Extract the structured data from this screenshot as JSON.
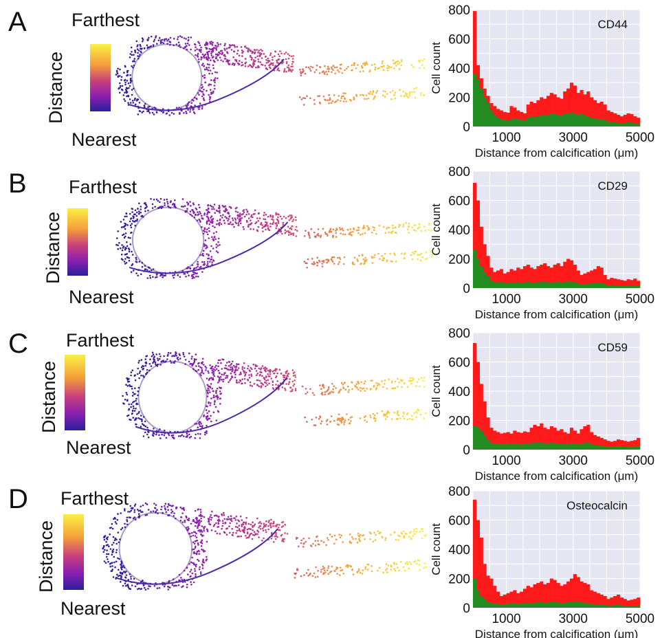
{
  "colorbar": {
    "top_label": "Farthest",
    "bottom_label": "Nearest",
    "axis_label": "Distance",
    "stops": [
      "#f9f044",
      "#f5a03a",
      "#c8407a",
      "#8a1fb0",
      "#2a1f9c"
    ]
  },
  "colors": {
    "red_series": "#ff1a1a",
    "green_series": "#228b22",
    "plot_bg": "#e6e6f2",
    "grid": "#ffffff"
  },
  "chart_data": [
    {
      "panel": "A",
      "type": "bar",
      "annotation": "CD44",
      "ylabel": "Cell count",
      "xlabel": "Distance from calcification (μm)",
      "xlim": [
        0,
        5000
      ],
      "ylim": [
        0,
        800
      ],
      "xticks": [
        1000,
        3000,
        5000
      ],
      "yticks": [
        0,
        200,
        400,
        600,
        800
      ],
      "bin_width": 100,
      "series": [
        {
          "values": [
            790,
            420,
            330,
            260,
            210,
            160,
            140,
            120,
            110,
            100,
            95,
            140,
            130,
            110,
            100,
            90,
            150,
            170,
            160,
            180,
            200,
            190,
            210,
            230,
            220,
            200,
            190,
            240,
            260,
            300,
            280,
            230,
            250,
            220,
            240,
            200,
            180,
            160,
            170,
            150,
            110,
            100,
            90,
            80,
            70,
            80,
            90,
            85,
            70,
            60
          ]
        },
        {
          "values": [
            360,
            320,
            260,
            200,
            160,
            110,
            80,
            60,
            50,
            45,
            40,
            50,
            55,
            50,
            45,
            40,
            60,
            70,
            65,
            70,
            80,
            75,
            80,
            90,
            85,
            80,
            75,
            85,
            90,
            95,
            90,
            80,
            85,
            75,
            70,
            60,
            55,
            50,
            50,
            45,
            35,
            30,
            28,
            25,
            22,
            25,
            28,
            26,
            22,
            20
          ]
        }
      ]
    },
    {
      "panel": "B",
      "type": "bar",
      "annotation": "CD29",
      "ylabel": "Cell count",
      "xlabel": "Distance from calcification (μm)",
      "xlim": [
        0,
        5000
      ],
      "ylim": [
        0,
        800
      ],
      "xticks": [
        1000,
        3000,
        5000
      ],
      "yticks": [
        0,
        200,
        400,
        600,
        800
      ],
      "bin_width": 100,
      "series": [
        {
          "values": [
            720,
            600,
            420,
            300,
            220,
            140,
            110,
            120,
            130,
            100,
            110,
            130,
            120,
            140,
            130,
            150,
            160,
            140,
            130,
            150,
            160,
            170,
            150,
            140,
            160,
            170,
            150,
            180,
            200,
            190,
            160,
            120,
            90,
            100,
            110,
            120,
            130,
            150,
            140,
            90,
            60,
            70,
            65,
            60,
            55,
            50,
            60,
            55,
            65,
            50
          ]
        },
        {
          "values": [
            260,
            200,
            150,
            110,
            80,
            50,
            40,
            40,
            45,
            35,
            35,
            40,
            38,
            40,
            35,
            40,
            42,
            38,
            36,
            40,
            42,
            45,
            40,
            38,
            40,
            42,
            38,
            45,
            48,
            45,
            40,
            32,
            25,
            28,
            30,
            32,
            33,
            36,
            34,
            25,
            18,
            20,
            18,
            16,
            15,
            14,
            16,
            15,
            17,
            14
          ]
        }
      ]
    },
    {
      "panel": "C",
      "type": "bar",
      "annotation": "CD59",
      "ylabel": "Cell count",
      "xlabel": "Distance from calcification (μm)",
      "xlim": [
        0,
        5000
      ],
      "ylim": [
        0,
        800
      ],
      "xticks": [
        1000,
        3000,
        5000
      ],
      "yticks": [
        0,
        200,
        400,
        600,
        800
      ],
      "bin_width": 100,
      "series": [
        {
          "values": [
            730,
            600,
            450,
            330,
            220,
            150,
            130,
            120,
            110,
            115,
            120,
            110,
            130,
            120,
            115,
            125,
            120,
            150,
            170,
            160,
            180,
            150,
            140,
            160,
            150,
            130,
            140,
            120,
            110,
            150,
            130,
            110,
            140,
            160,
            170,
            120,
            100,
            90,
            80,
            70,
            60,
            55,
            60,
            70,
            65,
            60,
            55,
            60,
            65,
            80
          ]
        },
        {
          "values": [
            160,
            150,
            130,
            100,
            70,
            45,
            40,
            38,
            36,
            38,
            40,
            36,
            42,
            38,
            36,
            40,
            38,
            45,
            48,
            46,
            50,
            44,
            42,
            46,
            44,
            40,
            42,
            38,
            36,
            44,
            40,
            36,
            42,
            46,
            48,
            36,
            30,
            28,
            26,
            24,
            20,
            18,
            20,
            22,
            21,
            20,
            18,
            20,
            22,
            24
          ]
        }
      ]
    },
    {
      "panel": "D",
      "type": "bar",
      "annotation": "Osteocalcin",
      "ylabel": "Cell count",
      "xlabel": "Distance from calcification (μm)",
      "xlim": [
        0,
        5000
      ],
      "ylim": [
        0,
        800
      ],
      "xticks": [
        1000,
        3000,
        5000
      ],
      "yticks": [
        0,
        200,
        400,
        600,
        800
      ],
      "bin_width": 100,
      "series": [
        {
          "values": [
            740,
            600,
            480,
            300,
            220,
            200,
            150,
            110,
            80,
            90,
            100,
            110,
            120,
            100,
            110,
            130,
            150,
            140,
            160,
            170,
            180,
            160,
            170,
            200,
            190,
            170,
            150,
            160,
            180,
            200,
            230,
            210,
            180,
            170,
            160,
            120,
            110,
            100,
            90,
            80,
            60,
            70,
            80,
            90,
            70,
            60,
            50,
            55,
            60,
            70
          ]
        },
        {
          "values": [
            200,
            120,
            80,
            60,
            40,
            30,
            28,
            26,
            24,
            25,
            26,
            28,
            30,
            26,
            28,
            30,
            34,
            32,
            35,
            36,
            38,
            34,
            36,
            40,
            38,
            36,
            32,
            34,
            38,
            40,
            44,
            40,
            36,
            34,
            32,
            26,
            24,
            22,
            20,
            18,
            15,
            16,
            18,
            20,
            16,
            14,
            12,
            13,
            14,
            16
          ]
        }
      ]
    }
  ]
}
